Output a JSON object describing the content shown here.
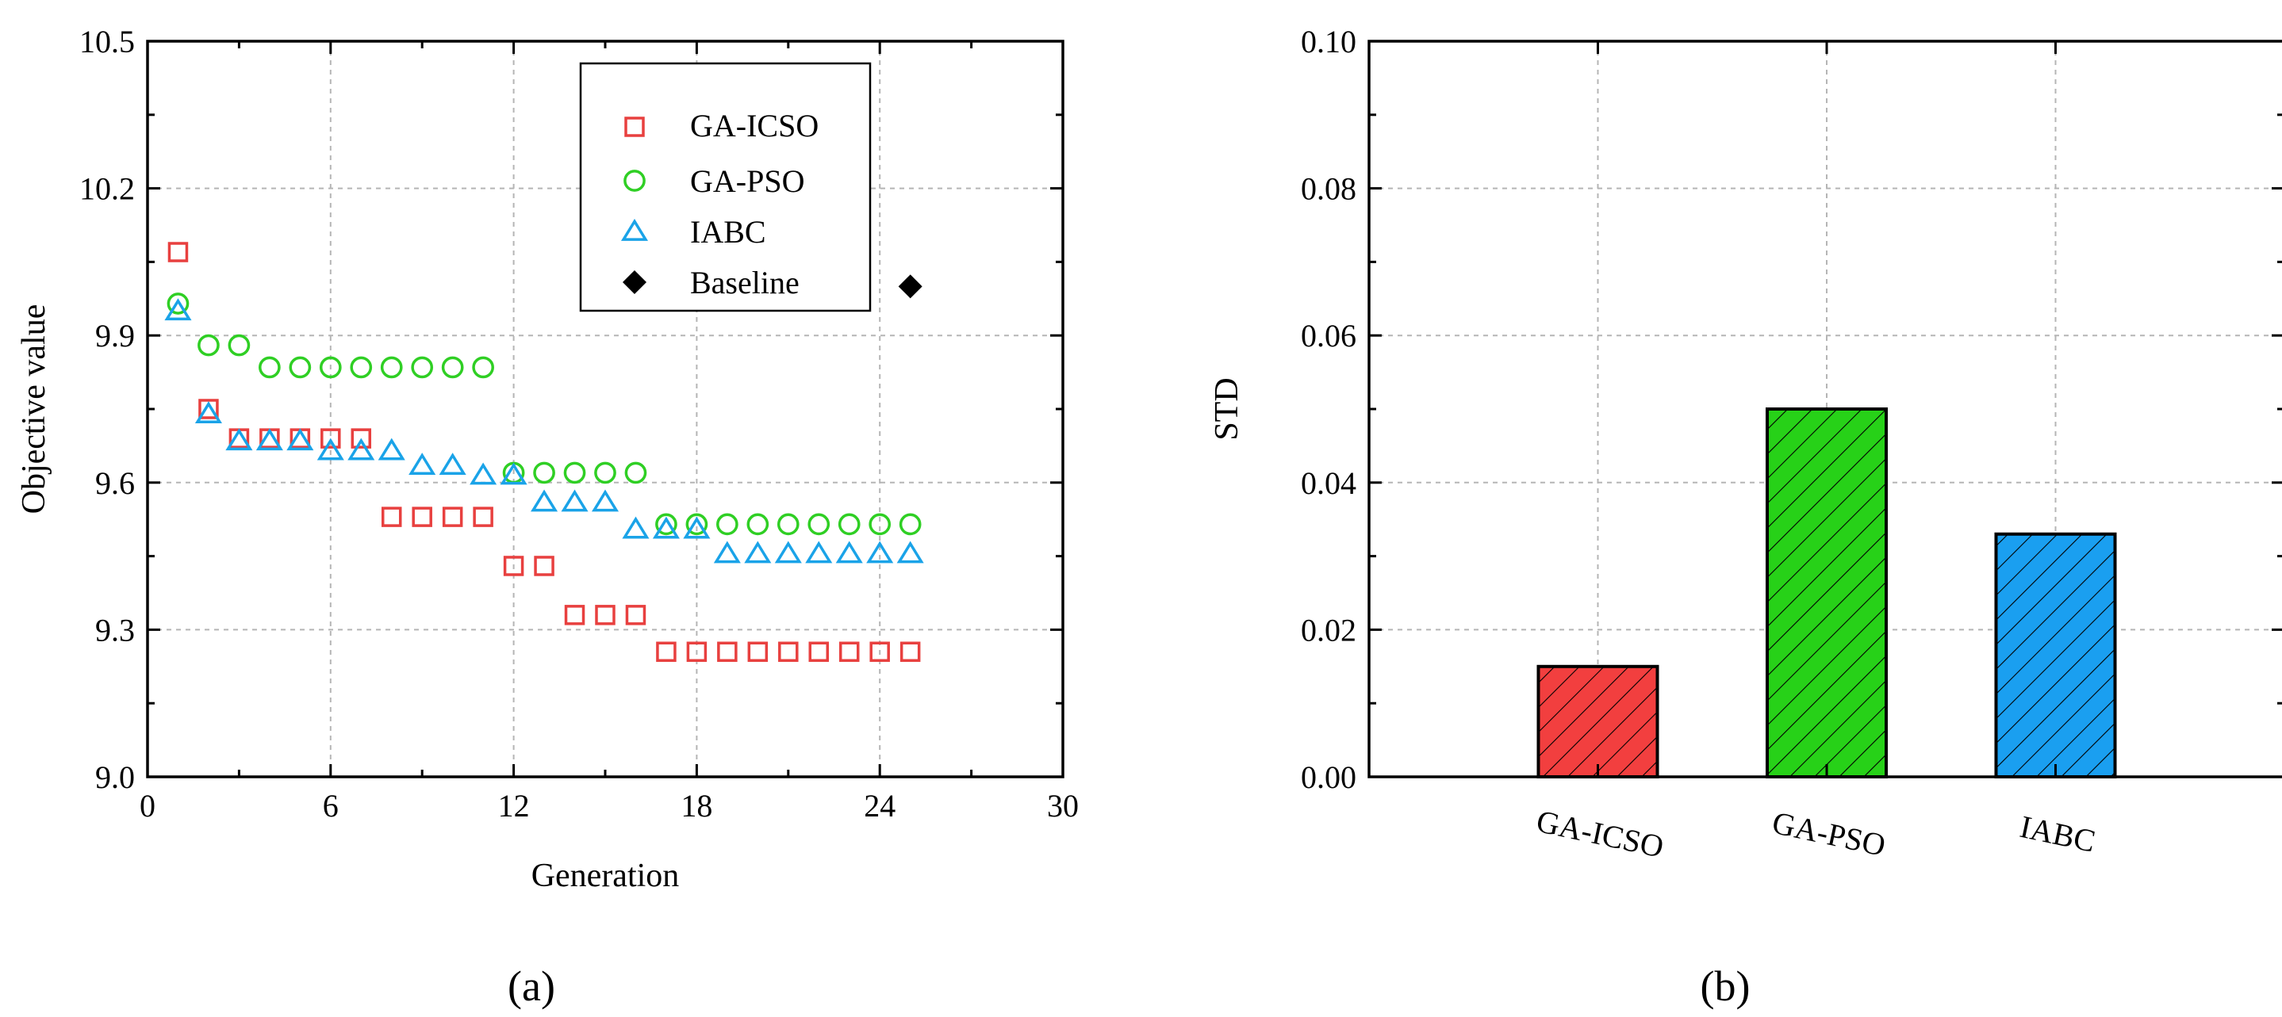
{
  "charts": [
    {
      "panel": "(a)",
      "chart_data": {
        "type": "scatter",
        "xlabel": "Generation",
        "ylabel": "Objective value",
        "xlim": [
          0,
          30
        ],
        "ylim": [
          9.0,
          10.5
        ],
        "xticks": [
          "0",
          "6",
          "12",
          "18",
          "24",
          "30"
        ],
        "yticks": [
          "9.0",
          "9.3",
          "9.6",
          "9.9",
          "10.2",
          "10.5"
        ],
        "legend_position": "top-right",
        "series": [
          {
            "name": "GA-ICSO",
            "marker": "square",
            "color": "#e8403f",
            "x": [
              1,
              2,
              3,
              4,
              5,
              6,
              7,
              8,
              9,
              10,
              11,
              12,
              13,
              14,
              15,
              16,
              17,
              18,
              19,
              20,
              21,
              22,
              23,
              24,
              25
            ],
            "y": [
              10.07,
              9.75,
              9.69,
              9.69,
              9.69,
              9.69,
              9.69,
              9.53,
              9.53,
              9.53,
              9.53,
              9.43,
              9.43,
              9.33,
              9.33,
              9.33,
              9.255,
              9.255,
              9.255,
              9.255,
              9.255,
              9.255,
              9.255,
              9.255,
              9.255
            ]
          },
          {
            "name": "GA-PSO",
            "marker": "circle",
            "color": "#2fcf24",
            "x": [
              1,
              2,
              3,
              4,
              5,
              6,
              7,
              8,
              9,
              10,
              11,
              12,
              13,
              14,
              15,
              16,
              17,
              18,
              19,
              20,
              21,
              22,
              23,
              24,
              25
            ],
            "y": [
              9.965,
              9.88,
              9.88,
              9.835,
              9.835,
              9.835,
              9.835,
              9.835,
              9.835,
              9.835,
              9.835,
              9.62,
              9.62,
              9.62,
              9.62,
              9.62,
              9.515,
              9.515,
              9.515,
              9.515,
              9.515,
              9.515,
              9.515,
              9.515,
              9.515
            ]
          },
          {
            "name": "IABC",
            "marker": "triangle",
            "color": "#1aa3e8",
            "x": [
              1,
              2,
              3,
              4,
              5,
              6,
              7,
              8,
              9,
              10,
              11,
              12,
              13,
              14,
              15,
              16,
              17,
              18,
              19,
              20,
              21,
              22,
              23,
              24,
              25
            ],
            "y": [
              9.95,
              9.74,
              9.685,
              9.685,
              9.685,
              9.665,
              9.665,
              9.665,
              9.635,
              9.635,
              9.615,
              9.615,
              9.56,
              9.56,
              9.56,
              9.505,
              9.505,
              9.505,
              9.455,
              9.455,
              9.455,
              9.455,
              9.455,
              9.455,
              9.455
            ]
          },
          {
            "name": "Baseline",
            "marker": "diamond",
            "color": "#000000",
            "x": [
              25
            ],
            "y": [
              10.0
            ]
          }
        ]
      }
    },
    {
      "panel": "(b)",
      "chart_data": {
        "type": "bar",
        "xlabel": "",
        "ylabel": "STD",
        "ylim": [
          0,
          0.1
        ],
        "yticks": [
          "0.00",
          "0.02",
          "0.04",
          "0.06",
          "0.08",
          "0.10"
        ],
        "categories": [
          "GA-ICSO",
          "GA-PSO",
          "IABC"
        ],
        "values": [
          0.015,
          0.05,
          0.033
        ],
        "colors": [
          "#f23f3f",
          "#27d118",
          "#1a9ff0"
        ],
        "hatch": "diagonal"
      }
    }
  ]
}
